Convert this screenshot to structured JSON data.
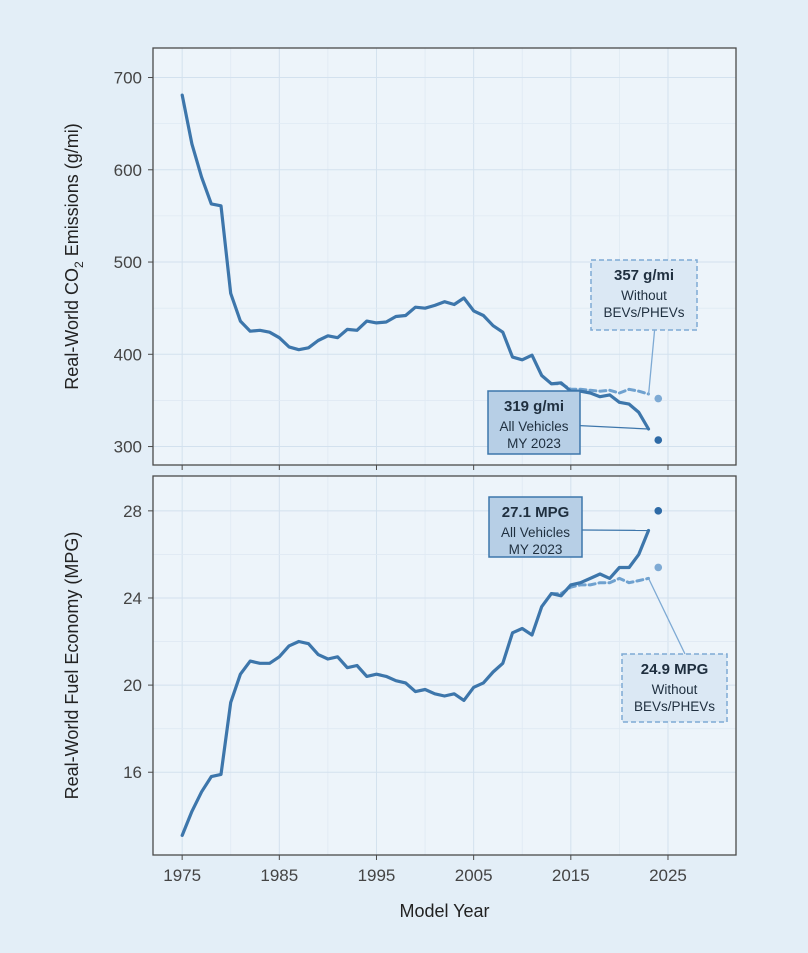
{
  "chart_data": [
    {
      "type": "line",
      "ylabel_prefix": "Real-World CO",
      "ylabel_sub": "2",
      "ylabel_suffix": " Emissions (g/mi)",
      "xlabel": "Model Year",
      "xlim": [
        1972,
        2032
      ],
      "ylim": [
        280,
        732
      ],
      "y_ticks": [
        300,
        400,
        500,
        600,
        700
      ],
      "x_ticks": [
        1975,
        1985,
        1995,
        2005,
        2015,
        2025
      ],
      "grid": true,
      "series": [
        {
          "key": "all",
          "color": "#3d76ab",
          "style": "solid",
          "x": [
            1975,
            1976,
            1977,
            1978,
            1979,
            1980,
            1981,
            1982,
            1983,
            1984,
            1985,
            1986,
            1987,
            1988,
            1989,
            1990,
            1991,
            1992,
            1993,
            1994,
            1995,
            1996,
            1997,
            1998,
            1999,
            2000,
            2001,
            2002,
            2003,
            2004,
            2005,
            2006,
            2007,
            2008,
            2009,
            2010,
            2011,
            2012,
            2013,
            2014,
            2015,
            2016,
            2017,
            2018,
            2019,
            2020,
            2021,
            2022,
            2023
          ],
          "y": [
            681,
            628,
            592,
            563,
            561,
            466,
            436,
            425,
            426,
            424,
            418,
            408,
            405,
            407,
            415,
            420,
            418,
            427,
            426,
            436,
            434,
            435,
            441,
            442,
            451,
            450,
            453,
            457,
            454,
            461,
            447,
            442,
            431,
            424,
            397,
            394,
            399,
            377,
            368,
            369,
            360,
            360,
            358,
            354,
            356,
            348,
            346,
            337,
            319
          ]
        },
        {
          "key": "without",
          "color": "#6fa1cf",
          "style": "dashed",
          "x": [
            2013,
            2014,
            2015,
            2016,
            2017,
            2018,
            2019,
            2020,
            2021,
            2022,
            2023
          ],
          "y": [
            368,
            368,
            362,
            362,
            361,
            360,
            361,
            358,
            362,
            360,
            357
          ]
        }
      ],
      "points": [
        {
          "x": 2024,
          "y": 307,
          "color": "#2e6aa6"
        },
        {
          "x": 2024,
          "y": 352,
          "color": "#7eaad4"
        }
      ],
      "callouts": [
        {
          "value": "319 g/mi",
          "lines": [
            "All Vehicles",
            "MY 2023"
          ],
          "style": "solid",
          "target_x": 2023,
          "target_y": 319
        },
        {
          "value": "357 g/mi",
          "lines": [
            "Without",
            "BEVs/PHEVs"
          ],
          "style": "dashed",
          "target_x": 2023,
          "target_y": 356
        }
      ]
    },
    {
      "type": "line",
      "ylabel": "Real-World Fuel Economy (MPG)",
      "xlabel": "Model Year",
      "xlim": [
        1972,
        2032
      ],
      "ylim": [
        12.2,
        29.6
      ],
      "y_ticks": [
        16,
        20,
        24,
        28
      ],
      "x_ticks": [
        1975,
        1985,
        1995,
        2005,
        2015,
        2025
      ],
      "grid": true,
      "series": [
        {
          "key": "all",
          "color": "#3d76ab",
          "style": "solid",
          "x": [
            1975,
            1976,
            1977,
            1978,
            1979,
            1980,
            1981,
            1982,
            1983,
            1984,
            1985,
            1986,
            1987,
            1988,
            1989,
            1990,
            1991,
            1992,
            1993,
            1994,
            1995,
            1996,
            1997,
            1998,
            1999,
            2000,
            2001,
            2002,
            2003,
            2004,
            2005,
            2006,
            2007,
            2008,
            2009,
            2010,
            2011,
            2012,
            2013,
            2014,
            2015,
            2016,
            2017,
            2018,
            2019,
            2020,
            2021,
            2022,
            2023
          ],
          "y": [
            13.1,
            14.2,
            15.1,
            15.8,
            15.9,
            19.2,
            20.5,
            21.1,
            21.0,
            21.0,
            21.3,
            21.8,
            22.0,
            21.9,
            21.4,
            21.2,
            21.3,
            20.8,
            20.9,
            20.4,
            20.5,
            20.4,
            20.2,
            20.1,
            19.7,
            19.8,
            19.6,
            19.5,
            19.6,
            19.3,
            19.9,
            20.1,
            20.6,
            21.0,
            22.4,
            22.6,
            22.3,
            23.6,
            24.2,
            24.1,
            24.6,
            24.7,
            24.9,
            25.1,
            24.9,
            25.4,
            25.4,
            26.0,
            27.1
          ]
        },
        {
          "key": "without",
          "color": "#6fa1cf",
          "style": "dashed",
          "x": [
            2013,
            2014,
            2015,
            2016,
            2017,
            2018,
            2019,
            2020,
            2021,
            2022,
            2023
          ],
          "y": [
            24.2,
            24.2,
            24.5,
            24.6,
            24.6,
            24.7,
            24.7,
            24.9,
            24.7,
            24.8,
            24.9
          ]
        }
      ],
      "points": [
        {
          "x": 2024,
          "y": 28.0,
          "color": "#2e6aa6"
        },
        {
          "x": 2024,
          "y": 25.4,
          "color": "#7eaad4"
        }
      ],
      "callouts": [
        {
          "value": "27.1 MPG",
          "lines": [
            "All Vehicles",
            "MY 2023"
          ],
          "style": "solid",
          "target_x": 2023,
          "target_y": 27.1
        },
        {
          "value": "24.9 MPG",
          "lines": [
            "Without",
            "BEVs/PHEVs"
          ],
          "style": "dashed",
          "target_x": 2023,
          "target_y": 24.9
        }
      ]
    }
  ]
}
